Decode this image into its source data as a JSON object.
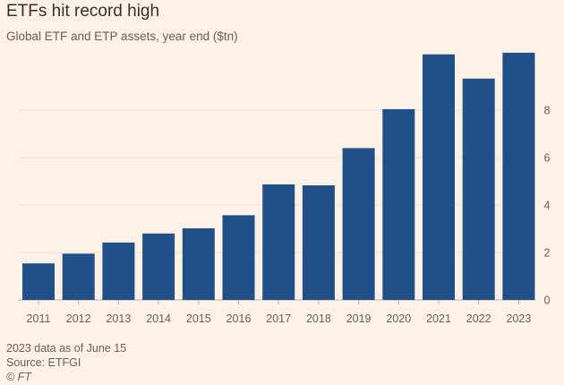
{
  "chart_data": {
    "type": "bar",
    "title": "ETFs hit record high",
    "subtitle": "Global ETF and ETP assets, year end ($tn)",
    "xlabel": "",
    "ylabel": "",
    "categories": [
      "2011",
      "2012",
      "2013",
      "2014",
      "2015",
      "2016",
      "2017",
      "2018",
      "2019",
      "2020",
      "2021",
      "2022",
      "2023"
    ],
    "values": [
      1.54,
      1.95,
      2.42,
      2.8,
      3.02,
      3.57,
      4.87,
      4.83,
      6.4,
      8.04,
      10.35,
      9.33,
      10.42
    ],
    "ylim": [
      0,
      10.6
    ],
    "yticks": [
      0,
      2,
      4,
      6,
      8
    ],
    "grid": true,
    "yaxis_position": "right",
    "bar_color": "#1f5188",
    "background": "#fff1e5"
  },
  "footer": {
    "note": "2023 data as of June 15",
    "source": "Source: ETFGI",
    "copyright": "© FT"
  }
}
